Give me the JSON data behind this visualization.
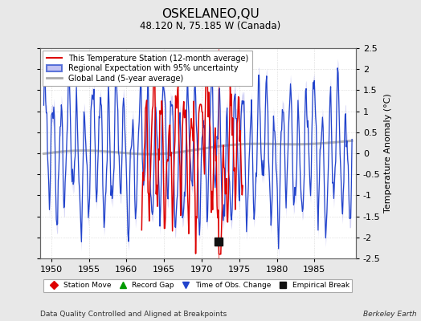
{
  "title": "OSKELANEO,QU",
  "subtitle": "48.120 N, 75.185 W (Canada)",
  "xlabel_bottom": "Data Quality Controlled and Aligned at Breakpoints",
  "xlabel_right": "Berkeley Earth",
  "ylabel": "Temperature Anomaly (°C)",
  "xlim": [
    1948.5,
    1990.5
  ],
  "ylim": [
    -2.5,
    2.5
  ],
  "yticks": [
    -2.5,
    -2,
    -1.5,
    -1,
    -0.5,
    0,
    0.5,
    1,
    1.5,
    2,
    2.5
  ],
  "xticks": [
    1950,
    1955,
    1960,
    1965,
    1970,
    1975,
    1980,
    1985
  ],
  "background_color": "#e8e8e8",
  "plot_bg_color": "#ffffff",
  "grid_color": "#cccccc",
  "empirical_break_x": 1972.3,
  "empirical_break_y": -2.1,
  "red_marker_x": 1972.3,
  "red_marker_y": 1.65,
  "legend_labels": [
    "This Temperature Station (12-month average)",
    "Regional Expectation with 95% uncertainty",
    "Global Land (5-year average)"
  ],
  "legend_colors": [
    "#dd0000",
    "#2244cc",
    "#aaaaaa"
  ],
  "marker_legend": [
    "Station Move",
    "Record Gap",
    "Time of Obs. Change",
    "Empirical Break"
  ],
  "marker_colors": [
    "#dd0000",
    "#009900",
    "#2244cc",
    "#111111"
  ],
  "marker_styles": [
    "D",
    "^",
    "v",
    "s"
  ],
  "regional_band_color": "#aaaaee",
  "regional_band_alpha": 0.5,
  "station_start_year": 1962.0,
  "station_end_year": 1975.5
}
